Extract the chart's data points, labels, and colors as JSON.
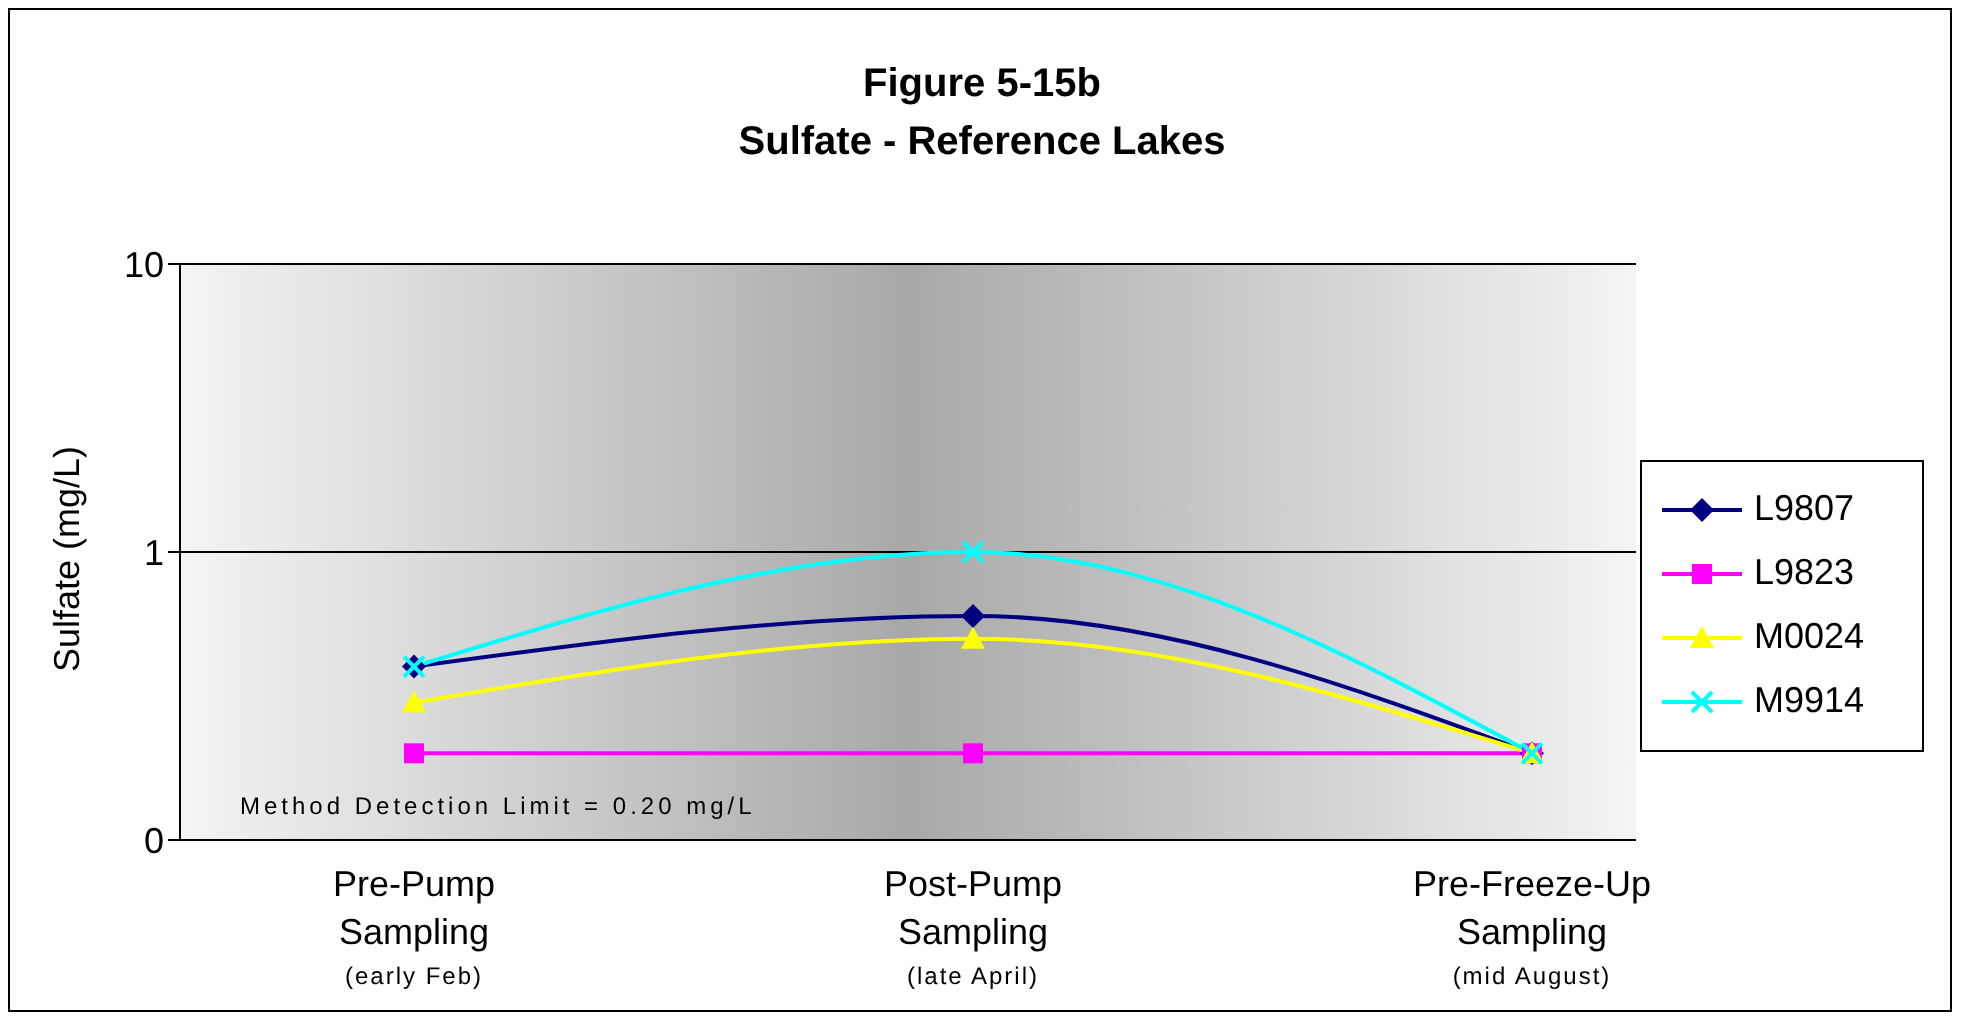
{
  "chart_data": {
    "type": "line",
    "title": "Figure 5-15b\nSulfate - Reference Lakes",
    "ylabel": "Sulfate (mg/L)",
    "categories": [
      "Pre-Pump\nSampling\n(early Feb)",
      "Post-Pump\nSampling\n(late April)",
      "Pre-Freeze-Up\nSampling\n(mid August)"
    ],
    "series": [
      {
        "name": "L9807",
        "color": "#000080",
        "marker": "diamond",
        "values": [
          0.4,
          0.6,
          0.2
        ]
      },
      {
        "name": "L9823",
        "color": "#ff00ff",
        "marker": "square",
        "values": [
          0.2,
          0.2,
          0.2
        ]
      },
      {
        "name": "M0024",
        "color": "#ffff00",
        "marker": "triangle",
        "values": [
          0.3,
          0.5,
          0.2
        ]
      },
      {
        "name": "M9914",
        "color": "#00ffff",
        "marker": "cross",
        "values": [
          0.4,
          1.0,
          0.2
        ]
      }
    ],
    "log": true,
    "ylim": [
      0.1,
      10
    ],
    "yticks": [
      {
        "value": 0.1,
        "label": "0"
      },
      1,
      10
    ],
    "grid": "y",
    "legend": "right",
    "annotations": [
      "Method Detection Limit = 0.20 mg/L"
    ]
  }
}
